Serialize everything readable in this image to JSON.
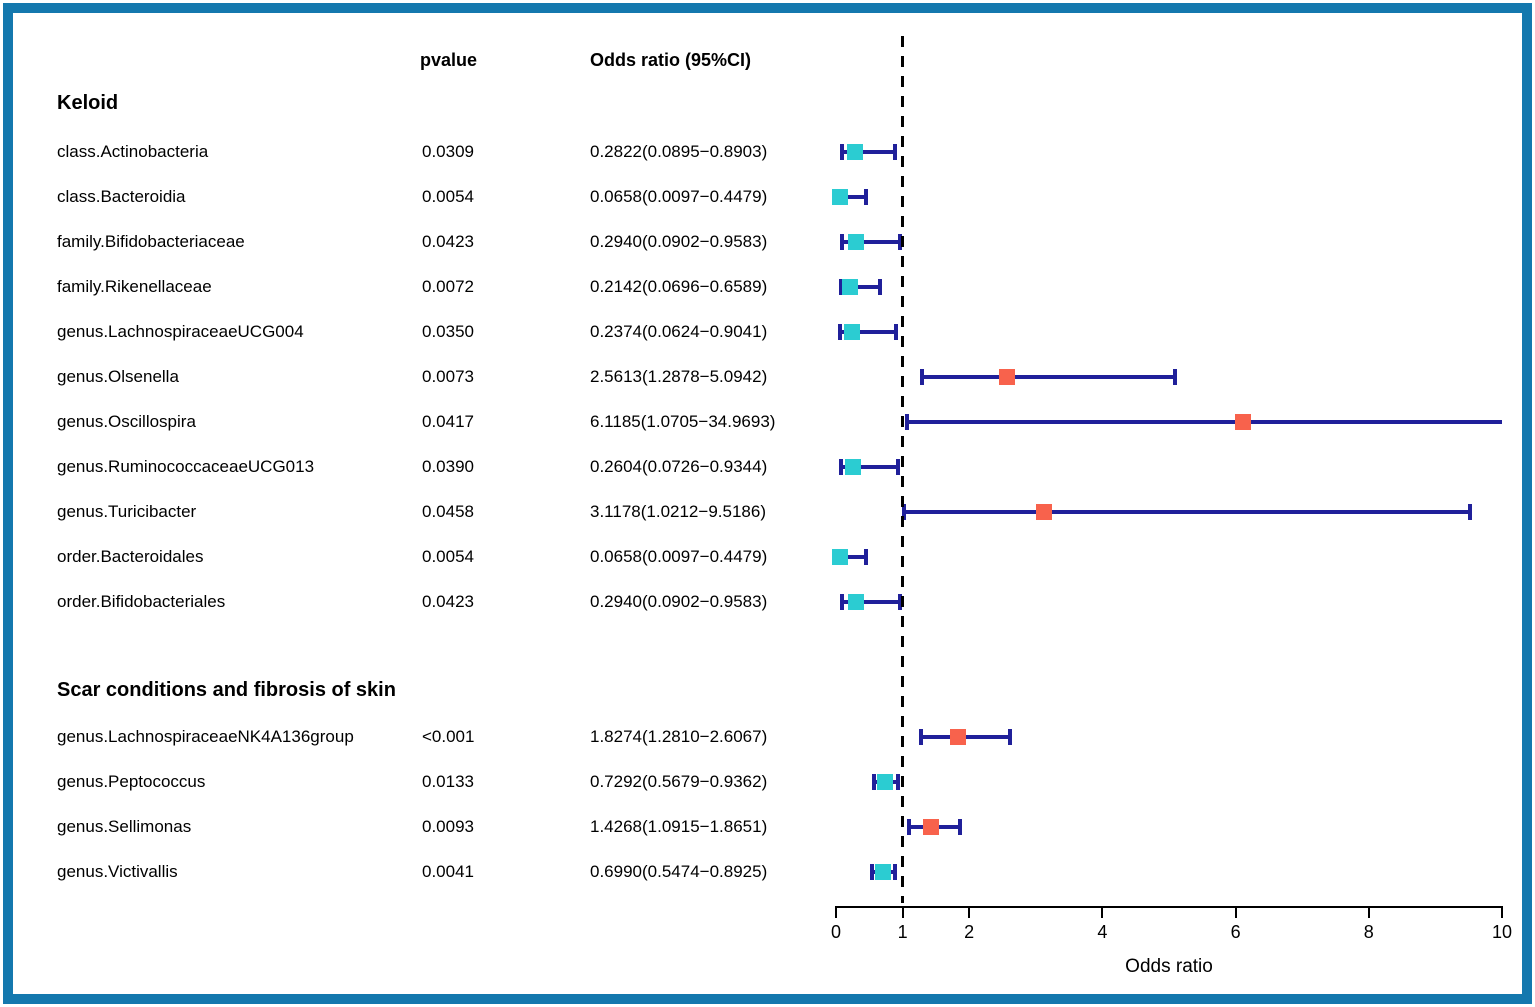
{
  "columns": {
    "pvalue_header": "pvalue",
    "or_header": "Odds ratio (95%CI)"
  },
  "axis": {
    "label": "Odds ratio",
    "min": 0,
    "max": 10,
    "ticks": [
      0,
      1,
      2,
      4,
      6,
      8,
      10
    ],
    "refline": 1
  },
  "colors": {
    "frame": "#1478ae",
    "errorbar": "#20209a",
    "marker_or_above_1": "#f8624c",
    "marker_or_below_1": "#2bccd2",
    "refline": "#000000"
  },
  "chart_data": {
    "type": "forest",
    "xlabel": "Odds ratio",
    "xlim": [
      0,
      10
    ],
    "xticks": [
      0,
      1,
      2,
      4,
      6,
      8,
      10
    ],
    "reference_line": 1,
    "legend": "none",
    "sections": [
      {
        "title": "Keloid",
        "rows": [
          {
            "label": "class.Actinobacteria",
            "pvalue": "0.0309",
            "or_ci": "0.2822(0.0895−0.8903)",
            "or": 0.2822,
            "lo": 0.0895,
            "hi": 0.8903
          },
          {
            "label": "class.Bacteroidia",
            "pvalue": "0.0054",
            "or_ci": "0.0658(0.0097−0.4479)",
            "or": 0.0658,
            "lo": 0.0097,
            "hi": 0.4479
          },
          {
            "label": "family.Bifidobacteriaceae",
            "pvalue": "0.0423",
            "or_ci": "0.2940(0.0902−0.9583)",
            "or": 0.294,
            "lo": 0.0902,
            "hi": 0.9583
          },
          {
            "label": "family.Rikenellaceae",
            "pvalue": "0.0072",
            "or_ci": "0.2142(0.0696−0.6589)",
            "or": 0.2142,
            "lo": 0.0696,
            "hi": 0.6589
          },
          {
            "label": "genus.LachnospiraceaeUCG004",
            "pvalue": "0.0350",
            "or_ci": "0.2374(0.0624−0.9041)",
            "or": 0.2374,
            "lo": 0.0624,
            "hi": 0.9041
          },
          {
            "label": "genus.Olsenella",
            "pvalue": "0.0073",
            "or_ci": "2.5613(1.2878−5.0942)",
            "or": 2.5613,
            "lo": 1.2878,
            "hi": 5.0942
          },
          {
            "label": "genus.Oscillospira",
            "pvalue": "0.0417",
            "or_ci": "6.1185(1.0705−34.9693)",
            "or": 6.1185,
            "lo": 1.0705,
            "hi": 34.9693
          },
          {
            "label": "genus.RuminococcaceaeUCG013",
            "pvalue": "0.0390",
            "or_ci": "0.2604(0.0726−0.9344)",
            "or": 0.2604,
            "lo": 0.0726,
            "hi": 0.9344
          },
          {
            "label": "genus.Turicibacter",
            "pvalue": "0.0458",
            "or_ci": "3.1178(1.0212−9.5186)",
            "or": 3.1178,
            "lo": 1.0212,
            "hi": 9.5186
          },
          {
            "label": "order.Bacteroidales",
            "pvalue": "0.0054",
            "or_ci": "0.0658(0.0097−0.4479)",
            "or": 0.0658,
            "lo": 0.0097,
            "hi": 0.4479
          },
          {
            "label": "order.Bifidobacteriales",
            "pvalue": "0.0423",
            "or_ci": "0.2940(0.0902−0.9583)",
            "or": 0.294,
            "lo": 0.0902,
            "hi": 0.9583
          }
        ]
      },
      {
        "title": "Scar conditions and fibrosis of skin",
        "rows": [
          {
            "label": "genus.LachnospiraceaeNK4A136group",
            "pvalue": "<0.001",
            "or_ci": "1.8274(1.2810−2.6067)",
            "or": 1.8274,
            "lo": 1.281,
            "hi": 2.6067
          },
          {
            "label": "genus.Peptococcus",
            "pvalue": "0.0133",
            "or_ci": "0.7292(0.5679−0.9362)",
            "or": 0.7292,
            "lo": 0.5679,
            "hi": 0.9362
          },
          {
            "label": "genus.Sellimonas",
            "pvalue": "0.0093",
            "or_ci": "1.4268(1.0915−1.8651)",
            "or": 1.4268,
            "lo": 1.0915,
            "hi": 1.8651
          },
          {
            "label": "genus.Victivallis",
            "pvalue": "0.0041",
            "or_ci": "0.6990(0.5474−0.8925)",
            "or": 0.699,
            "lo": 0.5474,
            "hi": 0.8925
          }
        ]
      }
    ]
  }
}
